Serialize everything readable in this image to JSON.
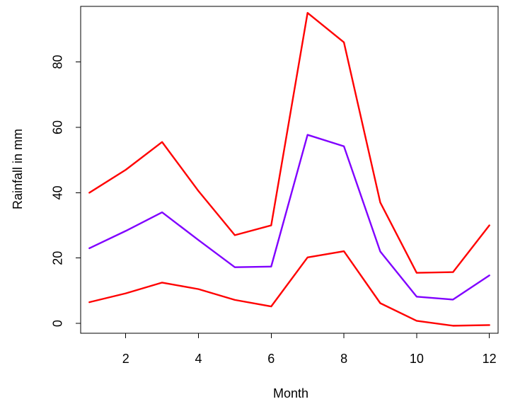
{
  "chart_data": {
    "type": "line",
    "title": "",
    "xlabel": "Month",
    "ylabel": "Rainfall in mm",
    "x": [
      1,
      2,
      3,
      4,
      5,
      6,
      7,
      8,
      9,
      10,
      11,
      12
    ],
    "xlim": [
      0.76,
      12.24
    ],
    "ylim": [
      -3,
      97
    ],
    "xticks": [
      2,
      4,
      6,
      8,
      10,
      12
    ],
    "yticks": [
      0,
      20,
      40,
      60,
      80
    ],
    "grid": false,
    "legend": "none",
    "series": [
      {
        "color": "#ff0000",
        "values": [
          40,
          47,
          55.5,
          40.5,
          27,
          30,
          95,
          86,
          37,
          15.5,
          15.7,
          30
        ]
      },
      {
        "color": "#8000ff",
        "values": [
          23,
          28.3,
          34,
          25.5,
          17.2,
          17.4,
          57.7,
          54.2,
          22,
          8.2,
          7.3,
          14.7
        ]
      },
      {
        "color": "#ff0000",
        "values": [
          6.5,
          9.2,
          12.5,
          10.5,
          7.2,
          5.2,
          20.2,
          22.1,
          6.2,
          0.8,
          -0.7,
          -0.5
        ]
      }
    ]
  }
}
